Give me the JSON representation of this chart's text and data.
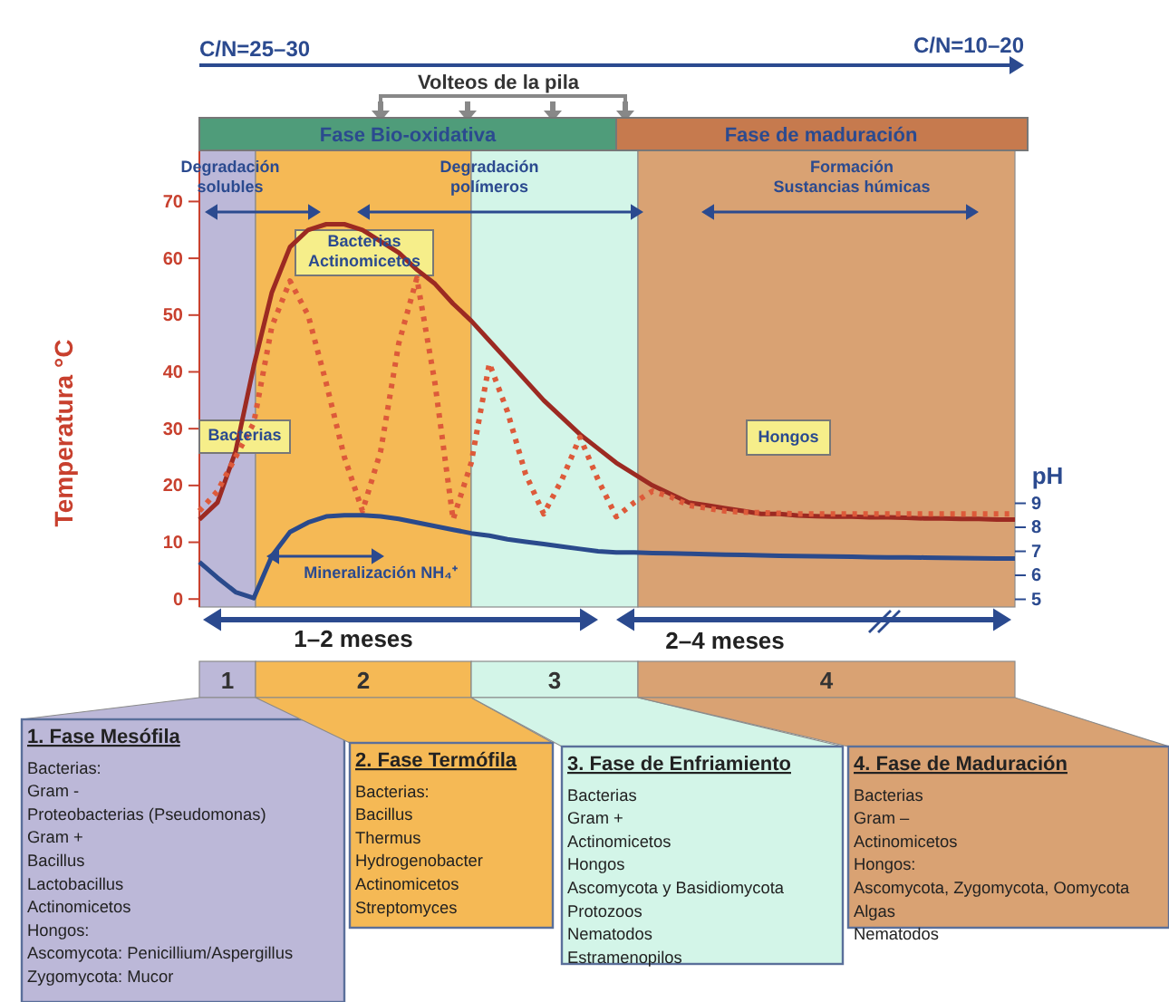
{
  "chart_data": {
    "type": "line",
    "ylabel": "Temperatura °C",
    "y2label": "pH",
    "categories": [
      null,
      null,
      null,
      null,
      null,
      null,
      null,
      null,
      null,
      null,
      null,
      null,
      null,
      null,
      null,
      null,
      null,
      null,
      null,
      null,
      null,
      null,
      null,
      null,
      null,
      null,
      null,
      null,
      null,
      null,
      null,
      null,
      null,
      null,
      null,
      null,
      null,
      null,
      null,
      null,
      null,
      null,
      null,
      null,
      null,
      null
    ],
    "ylim": [
      -1.4,
      79
    ],
    "yticks": [
      0,
      10,
      20,
      30,
      40,
      50,
      60,
      70
    ],
    "y2lim": [
      4.68,
      23.7
    ],
    "y2ticks": [
      5,
      6,
      7,
      8,
      9
    ],
    "tick_labels": "y",
    "grid": false,
    "marker": "none",
    "series": [
      {
        "color": "#9c2a22",
        "line_style": "solid",
        "values": [
          14,
          17,
          26,
          41,
          54,
          62,
          65,
          66,
          66,
          65,
          63,
          61,
          58,
          55.5,
          52,
          49,
          45.5,
          42,
          38.5,
          35,
          32,
          29,
          26.5,
          24,
          22,
          20,
          18.5,
          17,
          16.5,
          16,
          15.5,
          15,
          15,
          14.7,
          14.6,
          14.5,
          14.5,
          14.4,
          14.4,
          14.3,
          14.2,
          14.2,
          14.1,
          14.1,
          14,
          14
        ]
      },
      {
        "color": "#dd5a3a",
        "line_style": "dotted",
        "values": [
          15.5,
          19,
          25,
          31,
          48,
          56,
          50,
          38,
          25,
          15.5,
          26,
          45,
          56.5,
          38,
          14,
          24,
          41.5,
          33,
          22,
          15,
          21,
          28.5,
          21,
          14.5,
          17,
          19,
          18,
          16.5,
          16,
          15.5,
          15.3,
          15.2,
          15.1,
          15,
          15,
          15,
          15,
          15,
          15,
          15,
          15,
          15,
          15,
          15,
          15,
          15
        ]
      },
      {
        "color": "#2a4a8c",
        "line_style": "solid",
        "axis": "y2",
        "values": [
          6.55,
          5.9,
          5.3,
          5.05,
          6.8,
          7.8,
          8.2,
          8.45,
          8.5,
          8.5,
          8.45,
          8.35,
          8.2,
          8.05,
          7.9,
          7.75,
          7.65,
          7.5,
          7.4,
          7.3,
          7.2,
          7.1,
          7.0,
          6.95,
          6.95,
          6.93,
          6.92,
          6.9,
          6.88,
          6.86,
          6.85,
          6.83,
          6.81,
          6.8,
          6.79,
          6.78,
          6.77,
          6.76,
          6.75,
          6.75,
          6.74,
          6.73,
          6.72,
          6.71,
          6.7,
          6.7
        ]
      }
    ],
    "annotations": [
      "C/N=25–30",
      "C/N=10–20",
      "Volteos de la pila",
      "Fase Bio-oxidativa",
      "Fase de maduración",
      "Degradación\nsolubles",
      "Degradación\npolímeros",
      "Formación\nSustancias húmicas",
      "Bacterias\nActinomicetos",
      "Bacterias",
      "Hongos",
      "Mineralización NH₄⁺",
      "1–2 meses",
      "2–4 meses",
      "1. Fase Mesófila\nBacterias:\nGram -\nProteobacterias (Pseudomonas)\nGram +\nBacillus\nLactobacillus\nActinomicetos\nHongos:\nAscomycota: Penicillium/Aspergillus\nZygomycota: Mucor",
      "2. Fase Termófila\nBacterias:\nBacillus\nThermus\nHydrogenobacter\nActinomicetos\nStreptomyces",
      "3. Fase de Enfriamiento\nBacterias\nGram +\nActinomicetos\nHongos\nAscomycota y Basidiomycota\nProtozoos\nNematodos\nEstramenopilos",
      "4. Fase de Maduración\nBacterias\nGram –\nActinomicetos\nHongos:\nAscomycota, Zygomycota, Oomycota\nAlgas\nNematodos",
      "1",
      "2",
      "3",
      "4"
    ]
  }
}
